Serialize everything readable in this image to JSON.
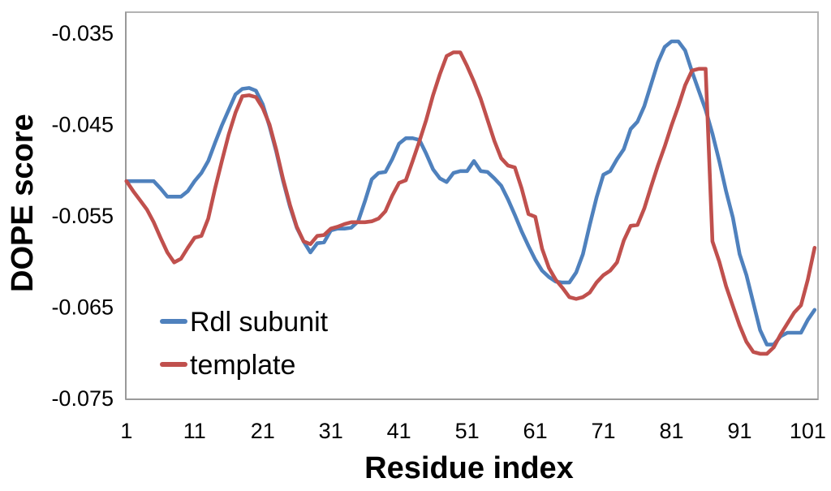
{
  "chart_data": {
    "type": "line",
    "title": "",
    "xlabel": "Residue index",
    "ylabel": "DOPE score",
    "grid": false,
    "legend_position": "inside-bottom-left",
    "x_ticks": [
      1,
      11,
      21,
      31,
      41,
      51,
      61,
      71,
      81,
      91,
      101
    ],
    "y_ticks": [
      -0.035,
      -0.045,
      -0.055,
      -0.065,
      -0.075
    ],
    "xlim": [
      0.9,
      102.5
    ],
    "ylim": [
      -0.075,
      -0.0327
    ],
    "x": [
      1,
      2,
      3,
      4,
      5,
      6,
      7,
      8,
      9,
      10,
      11,
      12,
      13,
      14,
      15,
      16,
      17,
      18,
      19,
      20,
      21,
      22,
      23,
      24,
      25,
      26,
      27,
      28,
      29,
      30,
      31,
      32,
      33,
      34,
      35,
      36,
      37,
      38,
      39,
      40,
      41,
      42,
      43,
      44,
      45,
      46,
      47,
      48,
      49,
      50,
      51,
      52,
      53,
      54,
      55,
      56,
      57,
      58,
      59,
      60,
      61,
      62,
      63,
      64,
      65,
      66,
      67,
      68,
      69,
      70,
      71,
      72,
      73,
      74,
      75,
      76,
      77,
      78,
      79,
      80,
      81,
      82,
      83,
      84,
      85,
      86,
      87,
      88,
      89,
      90,
      91,
      92,
      93,
      94,
      95,
      96,
      97,
      98,
      99,
      100,
      101,
      102
    ],
    "series": [
      {
        "name": "Rdl subunit",
        "color": "#4F81BD",
        "values": [
          -0.0512,
          -0.0512,
          -0.0512,
          -0.0512,
          -0.0512,
          -0.052,
          -0.0529,
          -0.0529,
          -0.0529,
          -0.0523,
          -0.0512,
          -0.0503,
          -0.049,
          -0.047,
          -0.0451,
          -0.0434,
          -0.0417,
          -0.0411,
          -0.041,
          -0.0413,
          -0.0428,
          -0.0452,
          -0.048,
          -0.0512,
          -0.054,
          -0.0563,
          -0.0578,
          -0.059,
          -0.058,
          -0.0579,
          -0.0566,
          -0.0564,
          -0.0564,
          -0.0563,
          -0.0556,
          -0.0534,
          -0.051,
          -0.0503,
          -0.0502,
          -0.0488,
          -0.0471,
          -0.0465,
          -0.0465,
          -0.0467,
          -0.0482,
          -0.0499,
          -0.0509,
          -0.0513,
          -0.0503,
          -0.0501,
          -0.0501,
          -0.049,
          -0.0501,
          -0.0502,
          -0.0509,
          -0.0517,
          -0.0532,
          -0.0549,
          -0.0567,
          -0.0583,
          -0.0598,
          -0.061,
          -0.0617,
          -0.0622,
          -0.0623,
          -0.0623,
          -0.0612,
          -0.0592,
          -0.056,
          -0.053,
          -0.0505,
          -0.0501,
          -0.0488,
          -0.0477,
          -0.0455,
          -0.0447,
          -0.043,
          -0.0406,
          -0.0382,
          -0.0365,
          -0.0359,
          -0.0359,
          -0.0369,
          -0.0392,
          -0.0413,
          -0.0434,
          -0.046,
          -0.049,
          -0.0523,
          -0.0552,
          -0.0592,
          -0.0615,
          -0.0645,
          -0.0675,
          -0.0691,
          -0.0691,
          -0.0682,
          -0.0678,
          -0.0678,
          -0.0678,
          -0.0664,
          -0.0653
        ]
      },
      {
        "name": "template",
        "color": "#C0504D",
        "values": [
          -0.0512,
          -0.0523,
          -0.0533,
          -0.0543,
          -0.0557,
          -0.0574,
          -0.059,
          -0.0601,
          -0.0597,
          -0.0585,
          -0.0574,
          -0.0572,
          -0.0553,
          -0.052,
          -0.049,
          -0.0461,
          -0.0437,
          -0.0419,
          -0.0418,
          -0.042,
          -0.0432,
          -0.045,
          -0.0478,
          -0.051,
          -0.0538,
          -0.0562,
          -0.0578,
          -0.0581,
          -0.0572,
          -0.0571,
          -0.0564,
          -0.0562,
          -0.0559,
          -0.0557,
          -0.0557,
          -0.0557,
          -0.0556,
          -0.0553,
          -0.0545,
          -0.0528,
          -0.0514,
          -0.0511,
          -0.049,
          -0.0468,
          -0.0445,
          -0.0418,
          -0.0395,
          -0.0375,
          -0.0371,
          -0.0371,
          -0.0386,
          -0.0403,
          -0.0422,
          -0.0445,
          -0.0468,
          -0.0487,
          -0.0495,
          -0.0497,
          -0.052,
          -0.0548,
          -0.0551,
          -0.0586,
          -0.0607,
          -0.062,
          -0.0629,
          -0.0639,
          -0.0641,
          -0.0639,
          -0.0634,
          -0.0623,
          -0.0615,
          -0.061,
          -0.0601,
          -0.0577,
          -0.0561,
          -0.056,
          -0.0542,
          -0.0518,
          -0.0495,
          -0.0474,
          -0.0451,
          -0.043,
          -0.0407,
          -0.0391,
          -0.0389,
          -0.0389,
          -0.0578,
          -0.06,
          -0.0627,
          -0.0649,
          -0.067,
          -0.0688,
          -0.0699,
          -0.0701,
          -0.0701,
          -0.0694,
          -0.068,
          -0.0668,
          -0.0656,
          -0.0648,
          -0.062,
          -0.0585
        ]
      }
    ]
  }
}
